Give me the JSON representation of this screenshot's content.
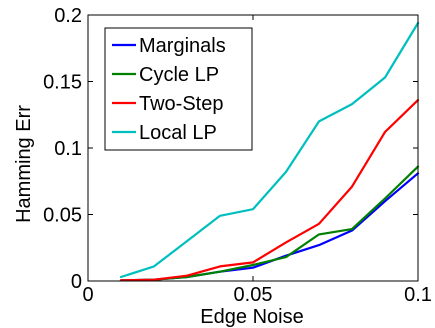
{
  "chart_data": {
    "type": "line",
    "title": "",
    "xlabel": "Edge Noise",
    "ylabel": "Hamming Err",
    "xlim": [
      0,
      0.1
    ],
    "ylim": [
      0,
      0.2
    ],
    "xticks": [
      0,
      0.05,
      0.1
    ],
    "xtick_labels": [
      "0",
      "0.05",
      "0.1"
    ],
    "yticks": [
      0,
      0.05,
      0.1,
      0.15,
      0.2
    ],
    "ytick_labels": [
      "0",
      "0.05",
      "0.1",
      "0.15",
      "0.2"
    ],
    "grid": false,
    "legend_position": "top-left",
    "x": [
      0.01,
      0.02,
      0.03,
      0.04,
      0.05,
      0.06,
      0.07,
      0.08,
      0.09,
      0.1
    ],
    "series": [
      {
        "name": "Marginals",
        "color": "#0000ff",
        "values": [
          0.0005,
          0.001,
          0.003,
          0.007,
          0.01,
          0.019,
          0.027,
          0.038,
          0.06,
          0.081
        ]
      },
      {
        "name": "Cycle LP",
        "color": "#008000",
        "values": [
          0.0005,
          0.001,
          0.003,
          0.007,
          0.012,
          0.018,
          0.035,
          0.039,
          0.062,
          0.086
        ]
      },
      {
        "name": "Two-Step",
        "color": "#ff0000",
        "values": [
          0.0005,
          0.001,
          0.004,
          0.011,
          0.014,
          0.029,
          0.043,
          0.071,
          0.112,
          0.136
        ]
      },
      {
        "name": "Local LP",
        "color": "#00bfbf",
        "values": [
          0.003,
          0.011,
          0.03,
          0.049,
          0.054,
          0.082,
          0.12,
          0.133,
          0.153,
          0.194
        ]
      }
    ]
  }
}
